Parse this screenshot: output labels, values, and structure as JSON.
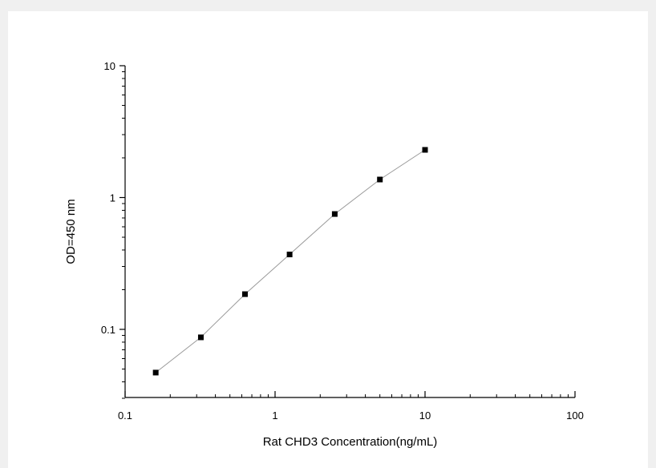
{
  "chart_data": {
    "type": "scatter",
    "title": "",
    "xlabel": "Rat CHD3 Concentration(ng/mL)",
    "ylabel": "OD=450 nm",
    "xscale": "log",
    "yscale": "log",
    "xlim": [
      0.1,
      100
    ],
    "ylim": [
      0.03,
      10
    ],
    "grid": false,
    "legend": "none",
    "x_ticks": [
      {
        "value": 0.1,
        "label": "0.1"
      },
      {
        "value": 1,
        "label": "1"
      },
      {
        "value": 10,
        "label": "10"
      },
      {
        "value": 100,
        "label": "100"
      }
    ],
    "y_ticks": [
      {
        "value": 0.1,
        "label": "0.1"
      },
      {
        "value": 1,
        "label": "1"
      },
      {
        "value": 10,
        "label": "10"
      }
    ],
    "series": [
      {
        "x": [
          0.16,
          0.32,
          0.63,
          1.25,
          2.5,
          5,
          10
        ],
        "y": [
          0.047,
          0.087,
          0.185,
          0.37,
          0.75,
          1.37,
          2.3
        ],
        "marker": "square",
        "line": true,
        "marker_color": "#000000",
        "line_color": "#9a9a9a"
      }
    ]
  }
}
